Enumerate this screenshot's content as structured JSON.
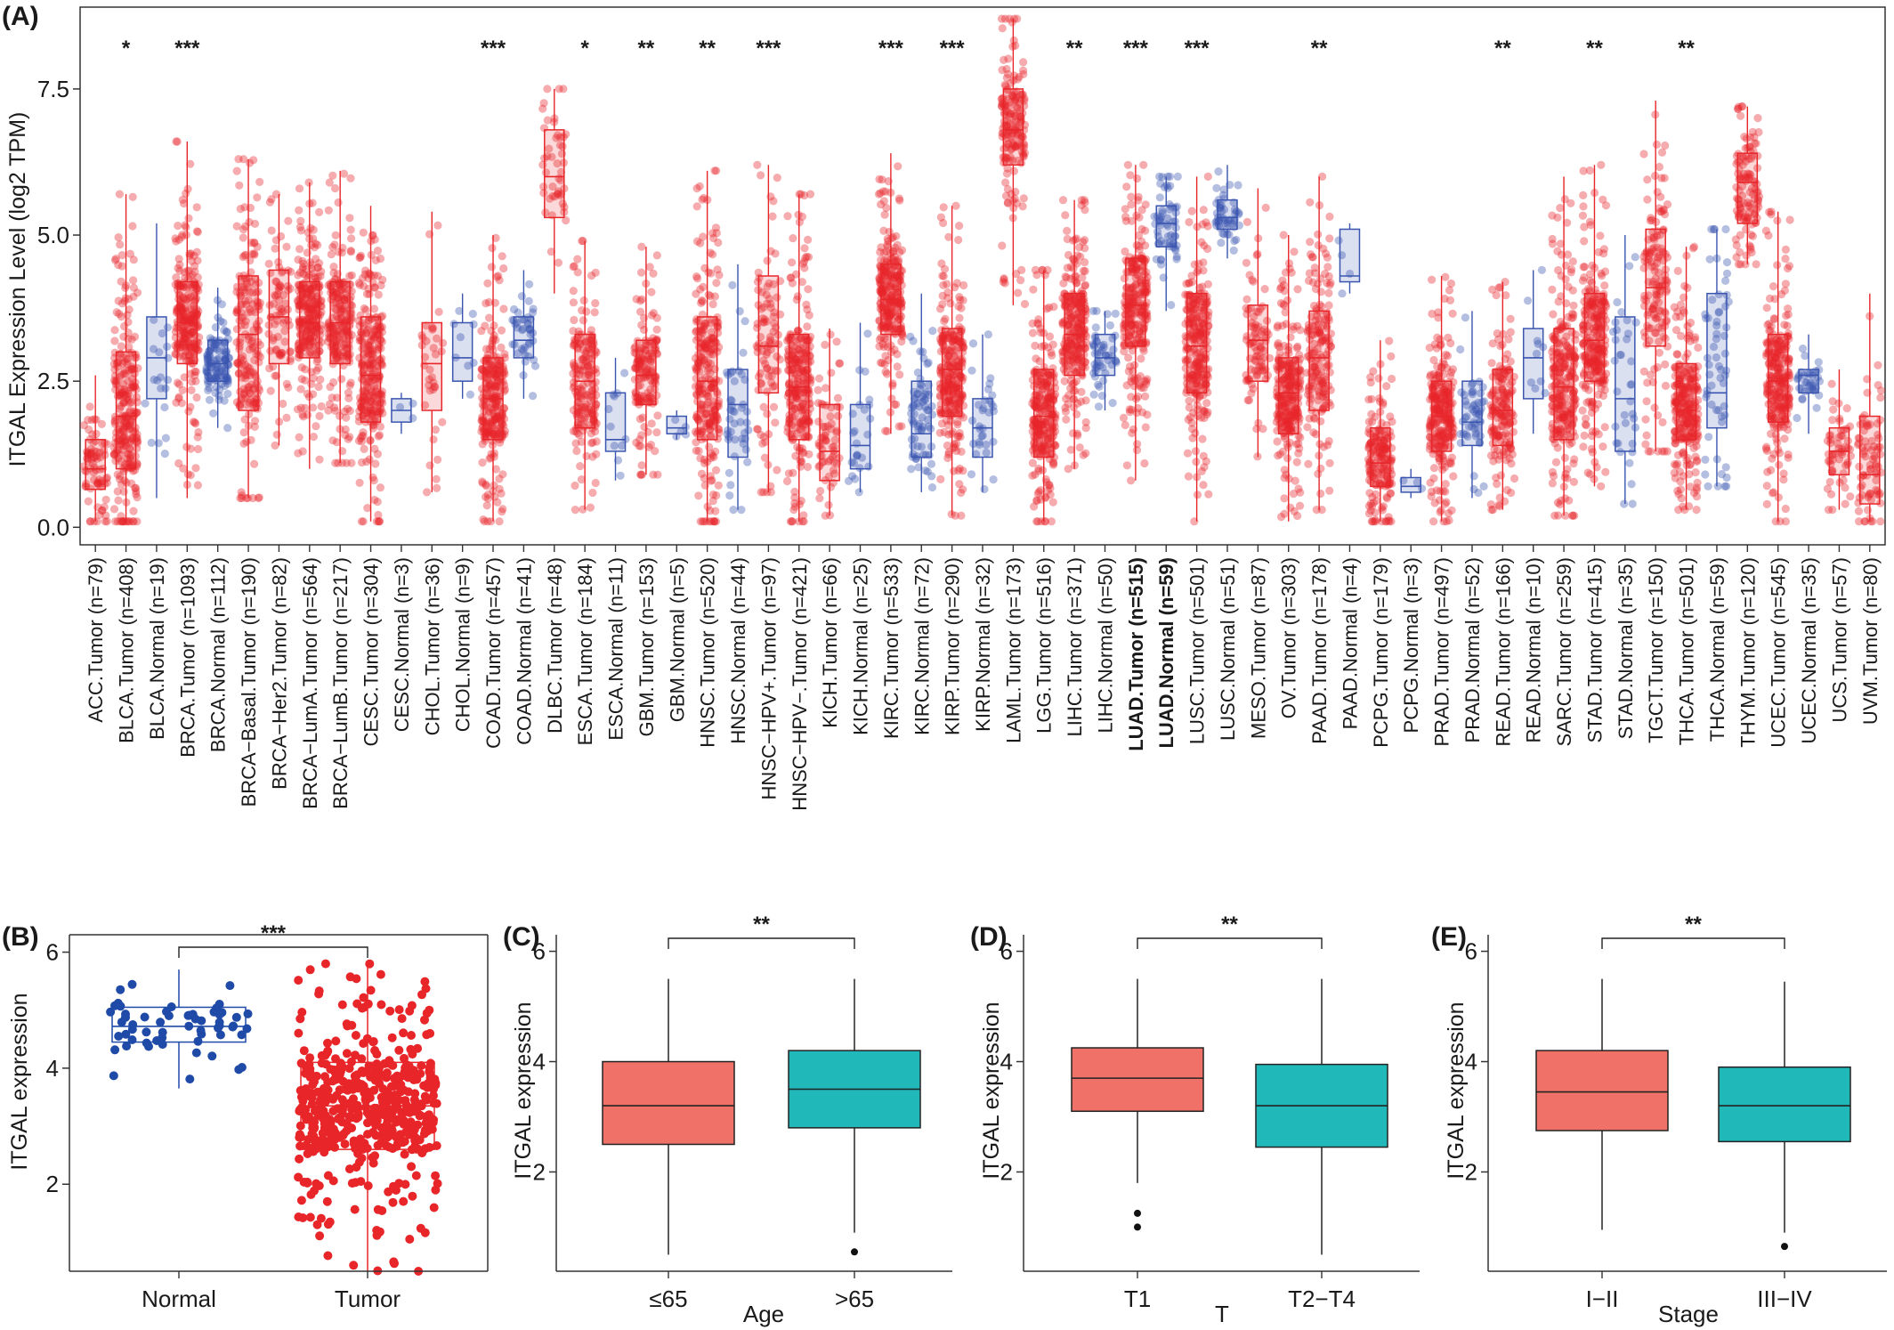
{
  "chart_data": [
    {
      "type": "box",
      "panel": "(A)",
      "ylabel": "ITGAL Expression Level (log2 TPM)",
      "ylim": [
        -0.3,
        8.9
      ],
      "yticks": [
        0.0,
        2.5,
        5.0,
        7.5
      ],
      "ytick_labels": [
        "0.0",
        "2.5",
        "5.0",
        "7.5"
      ],
      "highlight": {
        "LUAD.Tumor (n=515)": "#8b0000",
        "LUAD.Normal (n=59)": "#1a1a80"
      },
      "colors": {
        "Tumor": "#e8262a",
        "Normal": "#3a55b0"
      },
      "groups": [
        {
          "label": "ACC.Tumor (n=79)",
          "kind": "Tumor",
          "n": 79,
          "q1": 0.65,
          "median": 1.0,
          "q3": 1.5,
          "wlo": 0.1,
          "whi": 2.6,
          "sig": ""
        },
        {
          "label": "BLCA.Tumor (n=408)",
          "kind": "Tumor",
          "n": 408,
          "q1": 1.0,
          "median": 1.9,
          "q3": 3.0,
          "wlo": 0.1,
          "whi": 5.7,
          "sig": "*"
        },
        {
          "label": "BLCA.Normal (n=19)",
          "kind": "Normal",
          "n": 19,
          "q1": 2.2,
          "median": 2.9,
          "q3": 3.6,
          "wlo": 0.5,
          "whi": 5.2,
          "sig": ""
        },
        {
          "label": "BRCA.Tumor (n=1093)",
          "kind": "Tumor",
          "n": 1093,
          "q1": 2.8,
          "median": 3.5,
          "q3": 4.2,
          "wlo": 0.5,
          "whi": 6.6,
          "sig": "***"
        },
        {
          "label": "BRCA.Normal (n=112)",
          "kind": "Normal",
          "n": 112,
          "q1": 2.5,
          "median": 2.8,
          "q3": 3.2,
          "wlo": 1.7,
          "whi": 4.1,
          "sig": ""
        },
        {
          "label": "BRCA−Basal.Tumor (n=190)",
          "kind": "Tumor",
          "n": 190,
          "q1": 2.0,
          "median": 3.3,
          "q3": 4.3,
          "wlo": 0.5,
          "whi": 6.3,
          "sig": ""
        },
        {
          "label": "BRCA−Her2.Tumor (n=82)",
          "kind": "Tumor",
          "n": 82,
          "q1": 2.8,
          "median": 3.6,
          "q3": 4.4,
          "wlo": 1.4,
          "whi": 5.7,
          "sig": ""
        },
        {
          "label": "BRCA−LumA.Tumor (n=564)",
          "kind": "Tumor",
          "n": 564,
          "q1": 2.9,
          "median": 3.5,
          "q3": 4.2,
          "wlo": 1.0,
          "whi": 5.9,
          "sig": ""
        },
        {
          "label": "BRCA−LumB.Tumor (n=217)",
          "kind": "Tumor",
          "n": 217,
          "q1": 2.8,
          "median": 3.5,
          "q3": 4.2,
          "wlo": 1.1,
          "whi": 6.1,
          "sig": ""
        },
        {
          "label": "CESC.Tumor (n=304)",
          "kind": "Tumor",
          "n": 304,
          "q1": 1.8,
          "median": 2.6,
          "q3": 3.6,
          "wlo": 0.1,
          "whi": 5.5,
          "sig": ""
        },
        {
          "label": "CESC.Normal (n=3)",
          "kind": "Normal",
          "n": 3,
          "q1": 1.8,
          "median": 2.0,
          "q3": 2.2,
          "wlo": 1.6,
          "whi": 2.3,
          "sig": ""
        },
        {
          "label": "CHOL.Tumor (n=36)",
          "kind": "Tumor",
          "n": 36,
          "q1": 2.0,
          "median": 2.8,
          "q3": 3.5,
          "wlo": 0.6,
          "whi": 5.4,
          "sig": ""
        },
        {
          "label": "CHOL.Normal (n=9)",
          "kind": "Normal",
          "n": 9,
          "q1": 2.5,
          "median": 2.9,
          "q3": 3.5,
          "wlo": 2.2,
          "whi": 4.0,
          "sig": ""
        },
        {
          "label": "COAD.Tumor (n=457)",
          "kind": "Tumor",
          "n": 457,
          "q1": 1.5,
          "median": 2.2,
          "q3": 2.9,
          "wlo": 0.1,
          "whi": 5.0,
          "sig": "***"
        },
        {
          "label": "COAD.Normal (n=41)",
          "kind": "Normal",
          "n": 41,
          "q1": 2.9,
          "median": 3.2,
          "q3": 3.6,
          "wlo": 2.2,
          "whi": 4.4,
          "sig": ""
        },
        {
          "label": "DLBC.Tumor (n=48)",
          "kind": "Tumor",
          "n": 48,
          "q1": 5.3,
          "median": 6.0,
          "q3": 6.8,
          "wlo": 4.0,
          "whi": 7.5,
          "sig": ""
        },
        {
          "label": "ESCA.Tumor (n=184)",
          "kind": "Tumor",
          "n": 184,
          "q1": 1.7,
          "median": 2.5,
          "q3": 3.3,
          "wlo": 0.3,
          "whi": 4.9,
          "sig": "*"
        },
        {
          "label": "ESCA.Normal (n=11)",
          "kind": "Normal",
          "n": 11,
          "q1": 1.3,
          "median": 1.5,
          "q3": 2.3,
          "wlo": 0.8,
          "whi": 2.9,
          "sig": ""
        },
        {
          "label": "GBM.Tumor (n=153)",
          "kind": "Tumor",
          "n": 153,
          "q1": 2.1,
          "median": 2.6,
          "q3": 3.2,
          "wlo": 0.9,
          "whi": 4.8,
          "sig": "**"
        },
        {
          "label": "GBM.Normal (n=5)",
          "kind": "Normal",
          "n": 5,
          "q1": 1.6,
          "median": 1.7,
          "q3": 1.9,
          "wlo": 1.5,
          "whi": 2.0,
          "sig": ""
        },
        {
          "label": "HNSC.Tumor (n=520)",
          "kind": "Tumor",
          "n": 520,
          "q1": 1.5,
          "median": 2.5,
          "q3": 3.6,
          "wlo": 0.1,
          "whi": 6.1,
          "sig": "**"
        },
        {
          "label": "HNSC.Normal (n=44)",
          "kind": "Normal",
          "n": 44,
          "q1": 1.2,
          "median": 2.1,
          "q3": 2.7,
          "wlo": 0.3,
          "whi": 4.5,
          "sig": ""
        },
        {
          "label": "HNSC−HPV+.Tumor (n=97)",
          "kind": "Tumor",
          "n": 97,
          "q1": 2.3,
          "median": 3.1,
          "q3": 4.3,
          "wlo": 0.6,
          "whi": 6.2,
          "sig": "***"
        },
        {
          "label": "HNSC−HPV−.Tumor (n=421)",
          "kind": "Tumor",
          "n": 421,
          "q1": 1.5,
          "median": 2.4,
          "q3": 3.3,
          "wlo": 0.1,
          "whi": 5.7,
          "sig": ""
        },
        {
          "label": "KICH.Tumor (n=66)",
          "kind": "Tumor",
          "n": 66,
          "q1": 0.8,
          "median": 1.3,
          "q3": 2.1,
          "wlo": 0.2,
          "whi": 3.4,
          "sig": ""
        },
        {
          "label": "KICH.Normal (n=25)",
          "kind": "Normal",
          "n": 25,
          "q1": 1.0,
          "median": 1.4,
          "q3": 2.1,
          "wlo": 0.6,
          "whi": 3.5,
          "sig": ""
        },
        {
          "label": "KIRC.Tumor (n=533)",
          "kind": "Tumor",
          "n": 533,
          "q1": 3.3,
          "median": 3.9,
          "q3": 4.5,
          "wlo": 1.6,
          "whi": 6.4,
          "sig": "***"
        },
        {
          "label": "KIRC.Normal (n=72)",
          "kind": "Normal",
          "n": 72,
          "q1": 1.2,
          "median": 1.6,
          "q3": 2.5,
          "wlo": 0.6,
          "whi": 4.0,
          "sig": ""
        },
        {
          "label": "KIRP.Tumor (n=290)",
          "kind": "Tumor",
          "n": 290,
          "q1": 1.9,
          "median": 2.7,
          "q3": 3.4,
          "wlo": 0.2,
          "whi": 5.5,
          "sig": "***"
        },
        {
          "label": "KIRP.Normal (n=32)",
          "kind": "Normal",
          "n": 32,
          "q1": 1.2,
          "median": 1.7,
          "q3": 2.2,
          "wlo": 0.6,
          "whi": 3.3,
          "sig": ""
        },
        {
          "label": "LAML.Tumor (n=173)",
          "kind": "Tumor",
          "n": 173,
          "q1": 6.2,
          "median": 6.8,
          "q3": 7.5,
          "wlo": 3.8,
          "whi": 8.7,
          "sig": ""
        },
        {
          "label": "LGG.Tumor (n=516)",
          "kind": "Tumor",
          "n": 516,
          "q1": 1.2,
          "median": 1.9,
          "q3": 2.7,
          "wlo": 0.1,
          "whi": 4.4,
          "sig": ""
        },
        {
          "label": "LIHC.Tumor (n=371)",
          "kind": "Tumor",
          "n": 371,
          "q1": 2.6,
          "median": 3.3,
          "q3": 4.0,
          "wlo": 1.0,
          "whi": 5.6,
          "sig": "**"
        },
        {
          "label": "LIHC.Normal (n=50)",
          "kind": "Normal",
          "n": 50,
          "q1": 2.6,
          "median": 2.9,
          "q3": 3.3,
          "wlo": 2.0,
          "whi": 3.7,
          "sig": ""
        },
        {
          "label": "LUAD.Tumor (n=515)",
          "kind": "Tumor",
          "n": 515,
          "q1": 3.1,
          "median": 3.8,
          "q3": 4.6,
          "wlo": 0.8,
          "whi": 6.2,
          "sig": "***"
        },
        {
          "label": "LUAD.Normal (n=59)",
          "kind": "Normal",
          "n": 59,
          "q1": 4.8,
          "median": 5.2,
          "q3": 5.5,
          "wlo": 3.7,
          "whi": 6.0,
          "sig": ""
        },
        {
          "label": "LUSC.Tumor (n=501)",
          "kind": "Tumor",
          "n": 501,
          "q1": 2.3,
          "median": 3.1,
          "q3": 4.0,
          "wlo": 0.1,
          "whi": 6.0,
          "sig": "***"
        },
        {
          "label": "LUSC.Normal (n=51)",
          "kind": "Normal",
          "n": 51,
          "q1": 5.1,
          "median": 5.3,
          "q3": 5.6,
          "wlo": 4.6,
          "whi": 6.2,
          "sig": ""
        },
        {
          "label": "MESO.Tumor (n=87)",
          "kind": "Tumor",
          "n": 87,
          "q1": 2.5,
          "median": 3.2,
          "q3": 3.8,
          "wlo": 1.2,
          "whi": 5.8,
          "sig": ""
        },
        {
          "label": "OV.Tumor (n=303)",
          "kind": "Tumor",
          "n": 303,
          "q1": 1.6,
          "median": 2.3,
          "q3": 2.9,
          "wlo": 0.1,
          "whi": 5.0,
          "sig": ""
        },
        {
          "label": "PAAD.Tumor (n=178)",
          "kind": "Tumor",
          "n": 178,
          "q1": 2.0,
          "median": 2.9,
          "q3": 3.7,
          "wlo": 0.3,
          "whi": 6.0,
          "sig": "**"
        },
        {
          "label": "PAAD.Normal (n=4)",
          "kind": "Normal",
          "n": 4,
          "q1": 4.2,
          "median": 4.3,
          "q3": 5.1,
          "wlo": 4.0,
          "whi": 5.2,
          "sig": ""
        },
        {
          "label": "PCPG.Tumor (n=179)",
          "kind": "Tumor",
          "n": 179,
          "q1": 0.7,
          "median": 1.1,
          "q3": 1.7,
          "wlo": 0.1,
          "whi": 3.2,
          "sig": ""
        },
        {
          "label": "PCPG.Normal (n=3)",
          "kind": "Normal",
          "n": 3,
          "q1": 0.6,
          "median": 0.7,
          "q3": 0.85,
          "wlo": 0.5,
          "whi": 1.0,
          "sig": ""
        },
        {
          "label": "PRAD.Tumor (n=497)",
          "kind": "Tumor",
          "n": 497,
          "q1": 1.3,
          "median": 1.9,
          "q3": 2.5,
          "wlo": 0.1,
          "whi": 4.3,
          "sig": ""
        },
        {
          "label": "PRAD.Normal (n=52)",
          "kind": "Normal",
          "n": 52,
          "q1": 1.4,
          "median": 1.8,
          "q3": 2.5,
          "wlo": 0.5,
          "whi": 3.7,
          "sig": ""
        },
        {
          "label": "READ.Tumor (n=166)",
          "kind": "Tumor",
          "n": 166,
          "q1": 1.4,
          "median": 2.0,
          "q3": 2.7,
          "wlo": 0.3,
          "whi": 4.2,
          "sig": "**"
        },
        {
          "label": "READ.Normal (n=10)",
          "kind": "Normal",
          "n": 10,
          "q1": 2.2,
          "median": 2.9,
          "q3": 3.4,
          "wlo": 1.6,
          "whi": 4.4,
          "sig": ""
        },
        {
          "label": "SARC.Tumor (n=259)",
          "kind": "Tumor",
          "n": 259,
          "q1": 1.5,
          "median": 2.4,
          "q3": 3.4,
          "wlo": 0.2,
          "whi": 6.0,
          "sig": ""
        },
        {
          "label": "STAD.Tumor (n=415)",
          "kind": "Tumor",
          "n": 415,
          "q1": 2.5,
          "median": 3.2,
          "q3": 4.0,
          "wlo": 0.7,
          "whi": 6.2,
          "sig": "**"
        },
        {
          "label": "STAD.Normal (n=35)",
          "kind": "Normal",
          "n": 35,
          "q1": 1.3,
          "median": 2.2,
          "q3": 3.6,
          "wlo": 0.4,
          "whi": 5.0,
          "sig": ""
        },
        {
          "label": "TGCT.Tumor (n=150)",
          "kind": "Tumor",
          "n": 150,
          "q1": 3.1,
          "median": 4.1,
          "q3": 5.1,
          "wlo": 1.3,
          "whi": 7.3,
          "sig": ""
        },
        {
          "label": "THCA.Tumor (n=501)",
          "kind": "Tumor",
          "n": 501,
          "q1": 1.5,
          "median": 2.0,
          "q3": 2.8,
          "wlo": 0.3,
          "whi": 4.8,
          "sig": "**"
        },
        {
          "label": "THCA.Normal (n=59)",
          "kind": "Normal",
          "n": 59,
          "q1": 1.7,
          "median": 2.3,
          "q3": 4.0,
          "wlo": 0.7,
          "whi": 5.1,
          "sig": ""
        },
        {
          "label": "THYM.Tumor (n=120)",
          "kind": "Tumor",
          "n": 120,
          "q1": 5.2,
          "median": 5.9,
          "q3": 6.4,
          "wlo": 4.5,
          "whi": 7.2,
          "sig": ""
        },
        {
          "label": "UCEC.Tumor (n=545)",
          "kind": "Tumor",
          "n": 545,
          "q1": 1.8,
          "median": 2.5,
          "q3": 3.3,
          "wlo": 0.1,
          "whi": 5.4,
          "sig": ""
        },
        {
          "label": "UCEC.Normal (n=35)",
          "kind": "Normal",
          "n": 35,
          "q1": 2.3,
          "median": 2.6,
          "q3": 2.7,
          "wlo": 1.6,
          "whi": 3.3,
          "sig": ""
        },
        {
          "label": "UCS.Tumor (n=57)",
          "kind": "Tumor",
          "n": 57,
          "q1": 0.9,
          "median": 1.3,
          "q3": 1.7,
          "wlo": 0.3,
          "whi": 2.7,
          "sig": ""
        },
        {
          "label": "UVM.Tumor (n=80)",
          "kind": "Tumor",
          "n": 80,
          "q1": 0.4,
          "median": 0.9,
          "q3": 1.9,
          "wlo": 0.1,
          "whi": 4.0,
          "sig": ""
        }
      ]
    },
    {
      "type": "box",
      "panel": "(B)",
      "ylabel": "ITGAL expression",
      "xlabel": "",
      "ylim": [
        0.5,
        6.3
      ],
      "yticks": [
        2,
        4,
        6
      ],
      "ytick_labels": [
        "2",
        "4",
        "6"
      ],
      "significance": "***",
      "groups": [
        {
          "label": "Normal",
          "n": 59,
          "q1": 4.45,
          "median": 4.72,
          "q3": 5.05,
          "wlo": 3.65,
          "whi": 5.7,
          "color": "#1f4aa8"
        },
        {
          "label": "Tumor",
          "n": 515,
          "q1": 2.6,
          "median": 3.35,
          "q3": 4.1,
          "wlo": 0.5,
          "whi": 5.8,
          "color": "#e8262a"
        }
      ]
    },
    {
      "type": "box",
      "panel": "(C)",
      "ylabel": "ITGAL  expression",
      "xlabel": "Age",
      "ylim": [
        0.2,
        6.3
      ],
      "yticks": [
        2,
        4,
        6
      ],
      "ytick_labels": [
        "2",
        "4",
        "6"
      ],
      "significance": "**",
      "groups": [
        {
          "label": "≤65",
          "q1": 2.5,
          "median": 3.2,
          "q3": 4.0,
          "wlo": 0.5,
          "whi": 5.5,
          "outliers": [],
          "color": "#f07167"
        },
        {
          "label": ">65",
          "q1": 2.8,
          "median": 3.5,
          "q3": 4.2,
          "wlo": 0.9,
          "whi": 5.5,
          "outliers": [
            0.55
          ],
          "color": "#20b8b8"
        }
      ]
    },
    {
      "type": "box",
      "panel": "(D)",
      "ylabel": "ITGAL  expression",
      "xlabel": "T",
      "ylim": [
        0.2,
        6.3
      ],
      "yticks": [
        2,
        4,
        6
      ],
      "ytick_labels": [
        "2",
        "4",
        "6"
      ],
      "significance": "**",
      "groups": [
        {
          "label": "T1",
          "q1": 3.1,
          "median": 3.7,
          "q3": 4.25,
          "wlo": 1.8,
          "whi": 5.5,
          "outliers": [
            1.25,
            1.0
          ],
          "color": "#f07167"
        },
        {
          "label": "T2−T4",
          "q1": 2.45,
          "median": 3.2,
          "q3": 3.95,
          "wlo": 0.5,
          "whi": 5.5,
          "outliers": [],
          "color": "#20b8b8"
        }
      ]
    },
    {
      "type": "box",
      "panel": "(E)",
      "ylabel": "ITGAL  expression",
      "xlabel": "Stage",
      "ylim": [
        0.2,
        6.3
      ],
      "yticks": [
        2,
        4,
        6
      ],
      "ytick_labels": [
        "2",
        "4",
        "6"
      ],
      "significance": "**",
      "groups": [
        {
          "label": "I−II",
          "q1": 2.75,
          "median": 3.45,
          "q3": 4.2,
          "wlo": 0.95,
          "whi": 5.5,
          "outliers": [],
          "color": "#f07167"
        },
        {
          "label": "III−IV",
          "q1": 2.55,
          "median": 3.2,
          "q3": 3.9,
          "wlo": 0.9,
          "whi": 5.45,
          "outliers": [
            0.65
          ],
          "color": "#20b8b8"
        }
      ]
    }
  ]
}
